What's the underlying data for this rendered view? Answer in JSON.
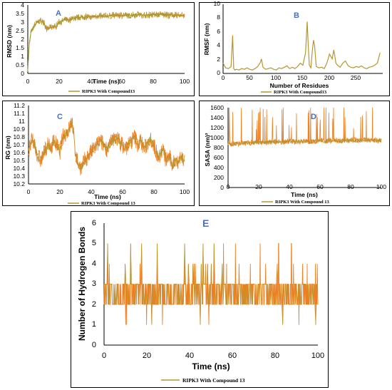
{
  "colors": {
    "olive": "#b8962e",
    "orange": "#f07f20",
    "green": "#7aa832",
    "axis": "#000000",
    "panel_letter": "#4472c4"
  },
  "chart_data": [
    {
      "id": "A",
      "type": "line",
      "panel_label": "A",
      "xlabel": "Time (ns)",
      "ylabel": "RMSD (nm)",
      "xlim": [
        0,
        100
      ],
      "ylim": [
        0,
        4
      ],
      "xticks": [
        "0",
        "20",
        "40",
        "60",
        "80",
        "100"
      ],
      "yticks": [
        "0",
        "0.5",
        "1",
        "1.5",
        "2",
        "2.5",
        "3",
        "3.5",
        "4"
      ],
      "legend": "RIPK3 With Compound13",
      "series": [
        {
          "x": [
            0,
            1,
            2,
            4,
            6,
            8,
            10,
            12,
            15,
            18,
            20,
            22,
            24,
            26,
            28,
            30,
            35,
            40,
            45,
            50,
            55,
            60,
            65,
            70,
            75,
            80,
            85,
            90,
            95,
            100
          ],
          "values": [
            0.2,
            1.8,
            2.4,
            2.8,
            3.0,
            3.1,
            3.0,
            2.6,
            2.7,
            2.75,
            3.0,
            3.05,
            3.15,
            3.1,
            3.2,
            3.25,
            3.3,
            3.3,
            3.35,
            3.35,
            3.4,
            3.4,
            3.4,
            3.45,
            3.4,
            3.45,
            3.45,
            3.4,
            3.4,
            3.4
          ]
        }
      ]
    },
    {
      "id": "B",
      "type": "line",
      "panel_label": "B",
      "xlabel": "Number of Residues",
      "ylabel": "RMSF (nm)",
      "xlim": [
        0,
        300
      ],
      "ylim": [
        0,
        10
      ],
      "xticks": [
        "0",
        "50",
        "100",
        "150",
        "200",
        "250"
      ],
      "yticks": [
        "0",
        "2",
        "4",
        "6",
        "8",
        "10"
      ],
      "legend": "RIPK3 With Compound13",
      "series": [
        {
          "x": [
            0,
            5,
            10,
            15,
            18,
            20,
            22,
            25,
            30,
            35,
            40,
            45,
            50,
            55,
            60,
            65,
            70,
            72,
            75,
            80,
            85,
            90,
            95,
            100,
            105,
            110,
            115,
            120,
            125,
            130,
            135,
            140,
            145,
            150,
            155,
            158,
            160,
            162,
            165,
            168,
            170,
            172,
            175,
            180,
            185,
            190,
            195,
            200,
            205,
            208,
            210,
            212,
            215,
            220,
            225,
            230,
            235,
            240,
            245,
            250,
            255,
            260,
            265,
            270,
            275,
            280,
            285,
            290,
            295
          ],
          "values": [
            1.5,
            0.8,
            0.7,
            1.0,
            5.5,
            0.7,
            0.5,
            0.6,
            0.5,
            0.7,
            0.6,
            0.8,
            0.6,
            0.5,
            0.7,
            1.0,
            1.6,
            2.1,
            0.9,
            0.6,
            0.7,
            0.8,
            0.6,
            0.5,
            0.8,
            0.7,
            0.9,
            1.1,
            0.7,
            0.9,
            0.7,
            1.0,
            1.5,
            1.2,
            3.0,
            7.5,
            4.0,
            1.2,
            0.8,
            3.5,
            4.8,
            4.0,
            1.0,
            0.8,
            0.9,
            0.7,
            1.5,
            2.8,
            2.1,
            3.4,
            2.5,
            1.5,
            1.2,
            0.9,
            1.5,
            1.8,
            1.1,
            0.9,
            0.8,
            1.0,
            0.9,
            1.1,
            0.8,
            0.7,
            0.9,
            1.0,
            1.2,
            1.5,
            3.0
          ]
        }
      ]
    },
    {
      "id": "C",
      "type": "line",
      "panel_label": "C",
      "xlabel": "Time (ns)",
      "ylabel": "RG (nm)",
      "xlim": [
        0,
        100
      ],
      "ylim": [
        10.2,
        11.2
      ],
      "xticks": [
        "0",
        "20",
        "40",
        "60",
        "80",
        "100"
      ],
      "yticks": [
        "10.2",
        "10.3",
        "10.4",
        "10.5",
        "10.6",
        "10.7",
        "10.8",
        "10.9",
        "11",
        "11.1",
        "11.2"
      ],
      "legend": "RIPK3 With Compound 13",
      "series": [
        {
          "x": [
            0,
            2,
            4,
            6,
            8,
            10,
            12,
            14,
            16,
            18,
            20,
            22,
            24,
            26,
            28,
            30,
            32,
            34,
            36,
            38,
            40,
            42,
            44,
            46,
            48,
            50,
            52,
            54,
            56,
            58,
            60,
            62,
            64,
            66,
            68,
            70,
            72,
            74,
            76,
            78,
            80,
            82,
            84,
            86,
            88,
            90,
            92,
            94,
            96,
            98,
            100
          ],
          "values": [
            10.6,
            10.75,
            10.7,
            10.55,
            10.5,
            10.6,
            10.7,
            10.65,
            10.75,
            10.7,
            10.6,
            10.8,
            10.85,
            10.9,
            11.0,
            10.6,
            10.45,
            10.4,
            10.5,
            10.55,
            10.6,
            10.65,
            10.7,
            10.75,
            10.7,
            10.65,
            10.7,
            10.75,
            10.8,
            10.75,
            10.7,
            10.65,
            10.7,
            10.75,
            10.8,
            10.7,
            10.75,
            10.65,
            10.7,
            10.8,
            10.7,
            10.6,
            10.55,
            10.65,
            10.5,
            10.55,
            10.45,
            10.5,
            10.5,
            10.55,
            10.5
          ]
        }
      ]
    },
    {
      "id": "D",
      "type": "line",
      "panel_label": "D",
      "xlabel": "Time (ns)",
      "ylabel": "SASA (nm)²",
      "xlim": [
        0,
        100
      ],
      "ylim": [
        0,
        1600
      ],
      "xticks": [
        "0",
        "20",
        "40",
        "60",
        "80",
        "100"
      ],
      "yticks": [
        "0",
        "200",
        "400",
        "600",
        "800",
        "1000",
        "1200",
        "1400",
        "1600"
      ],
      "legend": "RIPK3 With Compound 13",
      "series": [
        {
          "x": [
            0,
            5,
            10,
            15,
            20,
            25,
            30,
            35,
            40,
            45,
            50,
            55,
            60,
            65,
            70,
            75,
            80,
            85,
            90,
            95,
            100
          ],
          "values": [
            880,
            870,
            890,
            900,
            910,
            900,
            920,
            910,
            930,
            920,
            930,
            920,
            940,
            930,
            940,
            930,
            950,
            940,
            960,
            950,
            940
          ]
        }
      ]
    },
    {
      "id": "E",
      "type": "line",
      "panel_label": "E",
      "xlabel": "Time (ns)",
      "ylabel": "Number of Hydrogen Bonds",
      "xlim": [
        0,
        100
      ],
      "ylim": [
        0,
        6
      ],
      "xticks": [
        "0",
        "20",
        "40",
        "60",
        "80",
        "100"
      ],
      "yticks": [
        "0",
        "1",
        "2",
        "3",
        "4",
        "5",
        "6"
      ],
      "legend": "RIPK3 With Compound 13",
      "series": [
        {
          "x": [
            0,
            100
          ],
          "values": [
            3,
            3
          ]
        }
      ]
    }
  ]
}
